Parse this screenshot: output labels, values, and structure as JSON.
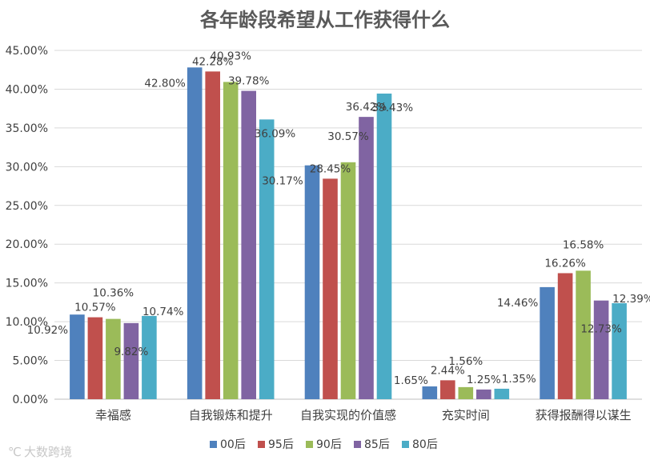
{
  "watermark": "大数跨境",
  "chart_data": {
    "type": "bar",
    "title": "各年龄段希望从工作获得什么",
    "xlabel": "",
    "ylabel": "",
    "ylim": [
      0,
      45
    ],
    "yticks": [
      "0.00%",
      "5.00%",
      "10.00%",
      "15.00%",
      "20.00%",
      "25.00%",
      "30.00%",
      "35.00%",
      "40.00%",
      "45.00%"
    ],
    "grid": true,
    "legend_position": "bottom",
    "categories": [
      "幸福感",
      "自我锻炼和提升",
      "自我实现的价值感",
      "充实时间",
      "获得报酬得以谋生"
    ],
    "series": [
      {
        "name": "00后",
        "color": "#4f81bd",
        "values": [
          10.92,
          42.8,
          30.17,
          1.65,
          14.46
        ],
        "labels": [
          "10.92%",
          "42.80%",
          "30.17%",
          "1.65%",
          "14.46%"
        ]
      },
      {
        "name": "95后",
        "color": "#c0504d",
        "values": [
          10.57,
          42.28,
          28.45,
          2.44,
          16.26
        ],
        "labels": [
          "10.57%",
          "42.28%",
          "28.45%",
          "2.44%",
          "16.26%"
        ]
      },
      {
        "name": "90后",
        "color": "#9bbb59",
        "values": [
          10.36,
          40.93,
          30.57,
          1.56,
          16.58
        ],
        "labels": [
          "10.36%",
          "40.93%",
          "30.57%",
          "1.56%",
          "16.58%"
        ]
      },
      {
        "name": "85后",
        "color": "#8064a2",
        "values": [
          9.82,
          39.78,
          36.42,
          1.25,
          12.73
        ],
        "labels": [
          "9.82%",
          "39.78%",
          "36.42%",
          "1.25%",
          "12.73%"
        ]
      },
      {
        "name": "80后",
        "color": "#4bacc6",
        "values": [
          10.74,
          36.09,
          39.43,
          1.35,
          12.39
        ],
        "labels": [
          "10.74%",
          "36.09%",
          "39.43%",
          "1.35%",
          "12.39%"
        ]
      }
    ]
  }
}
